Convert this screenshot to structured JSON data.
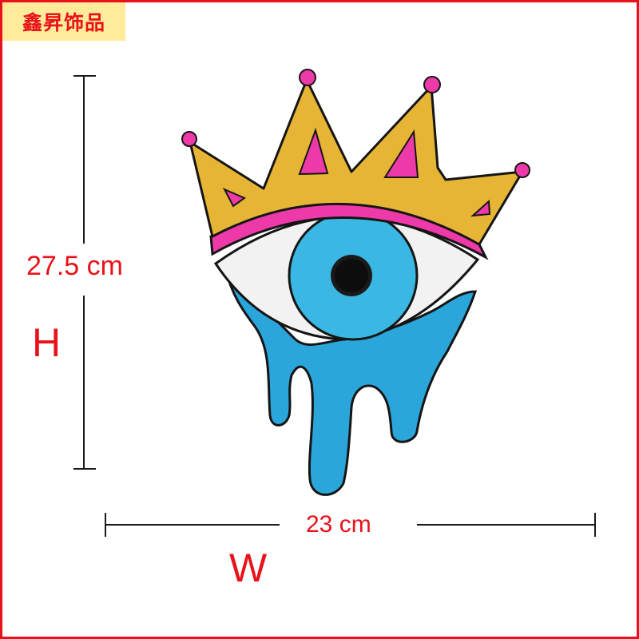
{
  "brand": {
    "text": "鑫昇饰品",
    "background": "#ffeb99",
    "color": "#e8121a"
  },
  "dimensions": {
    "height_value": "27.5 cm",
    "height_letter": "H",
    "width_value": "23 cm",
    "width_letter": "W",
    "color": "#e8121a"
  },
  "product": {
    "colors": {
      "crown_gold": "#e7b535",
      "crown_pink": "#ee3aa8",
      "eye_white": "#f2f2f2",
      "iris_blue": "#3ab8e3",
      "drip_blue": "#2aa6db",
      "pupil": "#1a1a1a",
      "outline": "#151515"
    }
  }
}
